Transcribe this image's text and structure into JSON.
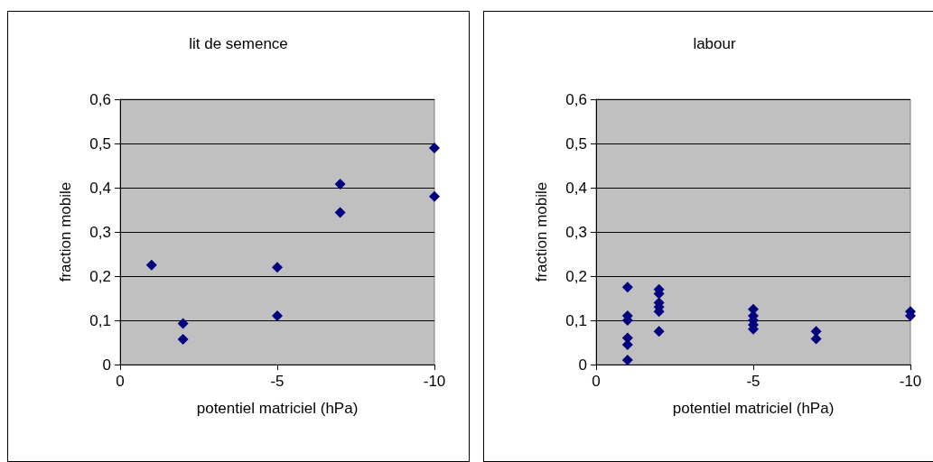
{
  "chart_data": [
    {
      "type": "scatter",
      "title": "lit de semence",
      "xlabel": "potentiel matriciel (hPa)",
      "ylabel": "fraction mobile",
      "xlim": [
        0,
        -10
      ],
      "xticks": [
        0,
        -5,
        -10
      ],
      "ylim": [
        0,
        0.6
      ],
      "yticks": [
        {
          "value": 0,
          "label": "0"
        },
        {
          "value": 0.1,
          "label": "0,1"
        },
        {
          "value": 0.2,
          "label": "0,2"
        },
        {
          "value": 0.3,
          "label": "0,3"
        },
        {
          "value": 0.4,
          "label": "0,4"
        },
        {
          "value": 0.5,
          "label": "0,5"
        },
        {
          "value": 0.6,
          "label": "0,6"
        }
      ],
      "grid": "y",
      "marker": "diamond",
      "series": [
        {
          "color": "#000080",
          "x": [
            -1,
            -2,
            -2,
            -5,
            -5,
            -7,
            -7,
            -10,
            -10
          ],
          "values": [
            0.225,
            0.093,
            0.057,
            0.22,
            0.11,
            0.408,
            0.344,
            0.49,
            0.38
          ]
        }
      ]
    },
    {
      "type": "scatter",
      "title": "labour",
      "xlabel": "potentiel matriciel (hPa)",
      "ylabel": "fraction mobile",
      "xlim": [
        0,
        -10
      ],
      "xticks": [
        0,
        -5,
        -10
      ],
      "ylim": [
        0,
        0.6
      ],
      "yticks": [
        {
          "value": 0,
          "label": "0"
        },
        {
          "value": 0.1,
          "label": "0,1"
        },
        {
          "value": 0.2,
          "label": "0,2"
        },
        {
          "value": 0.3,
          "label": "0,3"
        },
        {
          "value": 0.4,
          "label": "0,4"
        },
        {
          "value": 0.5,
          "label": "0,5"
        },
        {
          "value": 0.6,
          "label": "0,6"
        }
      ],
      "grid": "y",
      "marker": "diamond",
      "series": [
        {
          "color": "#000080",
          "x": [
            -1,
            -1,
            -1,
            -1,
            -1,
            -1,
            -2,
            -2,
            -2,
            -2,
            -2,
            -2,
            -5,
            -5,
            -5,
            -5,
            -5,
            -7,
            -7,
            -10,
            -10
          ],
          "values": [
            0.175,
            0.11,
            0.1,
            0.06,
            0.045,
            0.01,
            0.17,
            0.16,
            0.14,
            0.13,
            0.12,
            0.075,
            0.125,
            0.11,
            0.1,
            0.09,
            0.08,
            0.075,
            0.058,
            0.12,
            0.11
          ]
        }
      ]
    }
  ]
}
